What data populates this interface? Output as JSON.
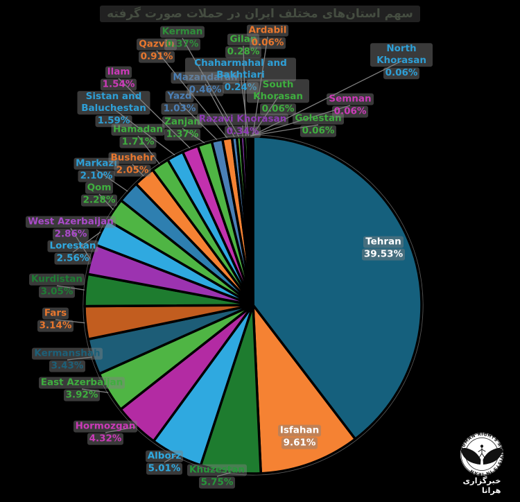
{
  "chart_data": {
    "type": "pie",
    "title": "سهم استان‌های مختلف ایران در حملات صورت گرفته",
    "unit": "%",
    "legend_position": "none",
    "value_label_format": "percent",
    "slices": [
      {
        "name": "Tehran",
        "value": 39.53,
        "color": "#15607d",
        "label_color": "#ffffff"
      },
      {
        "name": "Isfahan",
        "value": 9.61,
        "color": "#f58233",
        "label_color": "#ffffff"
      },
      {
        "name": "Khuzestan",
        "value": 5.75,
        "color": "#1e7c2f",
        "label_color": "#27983b"
      },
      {
        "name": "Alborz",
        "value": 5.01,
        "color": "#2fa9e0",
        "label_color": "#2fa9e0"
      },
      {
        "name": "Hormozgan",
        "value": 4.32,
        "color": "#b32ba3",
        "label_color": "#cb3ab8"
      },
      {
        "name": "East Azerbaijan",
        "value": 3.92,
        "color": "#4fb544",
        "label_color": "#3fae3f"
      },
      {
        "name": "Kermanshah",
        "value": 3.43,
        "color": "#1d5d77",
        "label_color": "#1d6078"
      },
      {
        "name": "Fars",
        "value": 3.14,
        "color": "#c25d1f",
        "label_color": "#e8772e"
      },
      {
        "name": "Kurdistan",
        "value": 3.05,
        "color": "#1e7c2f",
        "label_color": "#1e7e34"
      },
      {
        "name": "West Azerbaijan",
        "value": 2.86,
        "color": "#9c33b0",
        "label_color": "#a94ac9"
      },
      {
        "name": "Lorestan",
        "value": 2.56,
        "color": "#2fa9e0",
        "label_color": "#2fa9e0"
      },
      {
        "name": "Qom",
        "value": 2.28,
        "color": "#4fb544",
        "label_color": "#3fae3f"
      },
      {
        "name": "Markazi",
        "value": 2.1,
        "color": "#2e7fb0",
        "label_color": "#2e9fd6"
      },
      {
        "name": "Bushehr",
        "value": 2.05,
        "color": "#f58233",
        "label_color": "#e8772e"
      },
      {
        "name": "Hamadan",
        "value": 1.71,
        "color": "#4fb544",
        "label_color": "#3fae3f"
      },
      {
        "name": "Sistan and Baluchestan",
        "value": 1.59,
        "color": "#2fa9e0",
        "label_color": "#2e9fd6"
      },
      {
        "name": "Ilam",
        "value": 1.54,
        "color": "#c231ae",
        "label_color": "#cb3ab8"
      },
      {
        "name": "Zanjan",
        "value": 1.37,
        "color": "#4fb544",
        "label_color": "#3fae3f"
      },
      {
        "name": "Yazd",
        "value": 1.03,
        "color": "#4a7fb5",
        "label_color": "#4a7fb5"
      },
      {
        "name": "Qazvin",
        "value": 0.91,
        "color": "#f58233",
        "label_color": "#e8772e"
      },
      {
        "name": "Mazandaran",
        "value": 0.46,
        "color": "#4a7fb5",
        "label_color": "#4a7fb5"
      },
      {
        "name": "Kerman",
        "value": 0.37,
        "color": "#4fb544",
        "label_color": "#2f8f3a"
      },
      {
        "name": "Razavi Khorasan",
        "value": 0.34,
        "color": "#8e3bb5",
        "label_color": "#8e3bb5"
      },
      {
        "name": "Gilan",
        "value": 0.28,
        "color": "#4fb544",
        "label_color": "#3fae3f"
      },
      {
        "name": "Chaharmahal and Bakhtiari",
        "value": 0.24,
        "color": "#2fa9e0",
        "label_color": "#2e9fd6"
      },
      {
        "name": "Golestan",
        "value": 0.06,
        "color": "#4fb544",
        "label_color": "#3fae3f"
      },
      {
        "name": "Semnan",
        "value": 0.06,
        "color": "#c231ae",
        "label_color": "#cb3ab8"
      },
      {
        "name": "North Khorasan",
        "value": 0.06,
        "color": "#2fa9e0",
        "label_color": "#2e9fd6"
      },
      {
        "name": "South Khorasan",
        "value": 0.06,
        "color": "#4fb544",
        "label_color": "#3fae3f"
      },
      {
        "name": "Ardabil",
        "value": 0.06,
        "color": "#f58233",
        "label_color": "#e8772e"
      }
    ]
  },
  "logo": {
    "ring_text": "HUMAN RIGHTS ACTIVISTS IN IRAN",
    "caption": "خبرگزاری هرانا"
  },
  "style_colors": {
    "background": "#000000",
    "leader_line": "#8f8f8f",
    "pie_rim": "#000000",
    "outer_ring": "#ffffff"
  }
}
